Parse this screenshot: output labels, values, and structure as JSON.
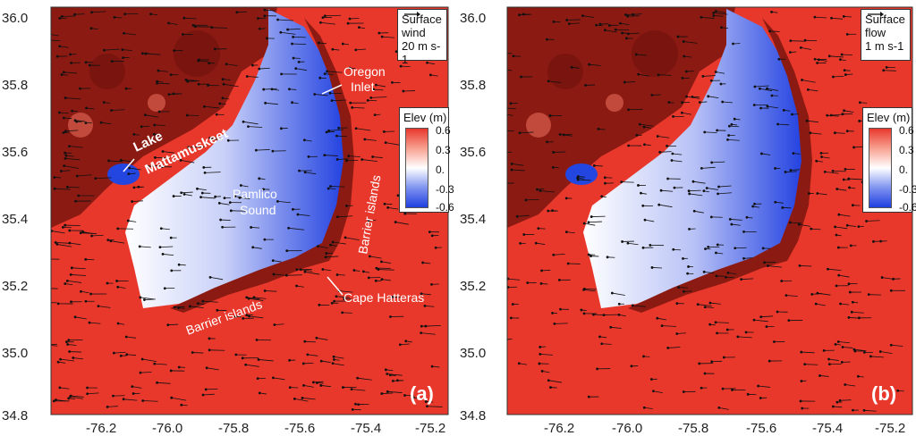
{
  "colors": {
    "ocean_red": "#e8382c",
    "land_dark": "#8b1a12",
    "blue": "#1f3fe0",
    "white": "#ffffff"
  },
  "axes": {
    "y_ticks": [
      "36.0",
      "35.8",
      "35.6",
      "35.4",
      "35.2",
      "35.0",
      "34.8"
    ],
    "x_ticks": [
      "-76.2",
      "-76.0",
      "-75.8",
      "-75.6",
      "-75.4",
      "-75.2"
    ],
    "x_range": [
      -76.4,
      -75.2
    ],
    "y_range": [
      34.8,
      36.0
    ]
  },
  "colorbar": {
    "title": "Elev (m)",
    "labels": [
      "0.6",
      "0.3",
      "0.",
      "-0.3",
      "-0.6"
    ]
  },
  "panels": [
    {
      "tag": "(a)",
      "vector_label_line1": "Surface",
      "vector_label_line2": "wind",
      "vector_scale": "20 m s-1",
      "vector_icon": "arrow-right-icon",
      "vector_field": "wind"
    },
    {
      "tag": "(b)",
      "vector_label_line1": "Surface",
      "vector_label_line2": "flow",
      "vector_scale": "1 m s-1",
      "vector_icon": "arrow-right-icon",
      "vector_field": "flow"
    }
  ],
  "annotations": {
    "oregon_inlet_1": "Oregon",
    "oregon_inlet_2": "Inlet",
    "lake_1": "Lake",
    "lake_2": "Mattamuskeet",
    "pamlico_1": "Pamlico",
    "pamlico_2": "Sound",
    "barrier_east": "Barrier islands",
    "barrier_south": "Barrier islands",
    "cape_hatteras": "Cape Hatteras"
  }
}
